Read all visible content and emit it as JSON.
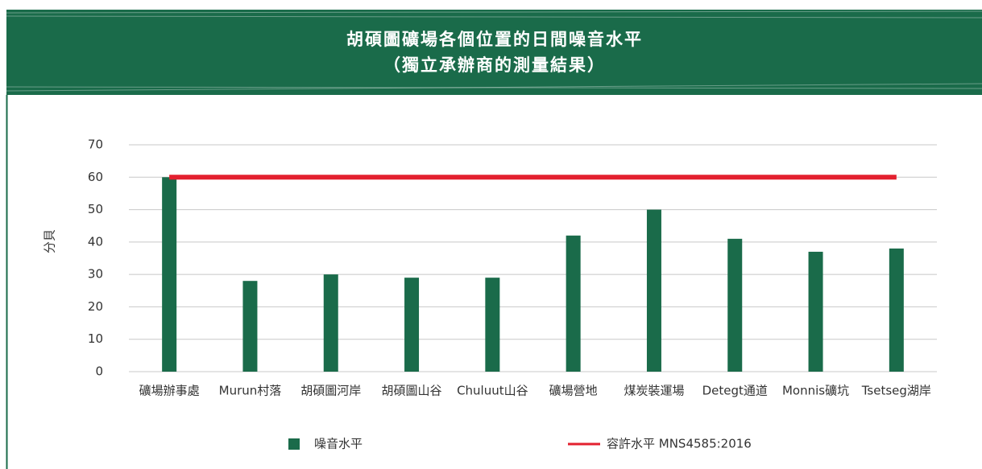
{
  "chart_data": {
    "type": "bar",
    "title": "胡碩圖礦場各個位置的日間噪音水平",
    "subtitle": "（獨立承辦商的測量結果）",
    "y_label": "分貝",
    "categories": [
      "礦場辦事處",
      "Murun村落",
      "胡碩圖河岸",
      "胡碩圖山谷",
      "Chuluut山谷",
      "礦場營地",
      "煤炭裝運場",
      "Detegt通道",
      "Monnis礦坑",
      "Tsetseg湖岸"
    ],
    "series": [
      {
        "name": "噪音水平",
        "type": "bar",
        "color": "#1a6b4a",
        "values": [
          60,
          28,
          30,
          29,
          29,
          42,
          50,
          41,
          37,
          38
        ]
      },
      {
        "name": "容許水平 MNS4585:2016",
        "type": "line",
        "color": "#e3202f",
        "values": [
          60,
          60,
          60,
          60,
          60,
          60,
          60,
          60,
          60,
          60
        ]
      }
    ],
    "ylim": [
      0,
      70
    ],
    "yticks": [
      0,
      10,
      20,
      30,
      40,
      50,
      60,
      70
    ],
    "grid": true
  }
}
